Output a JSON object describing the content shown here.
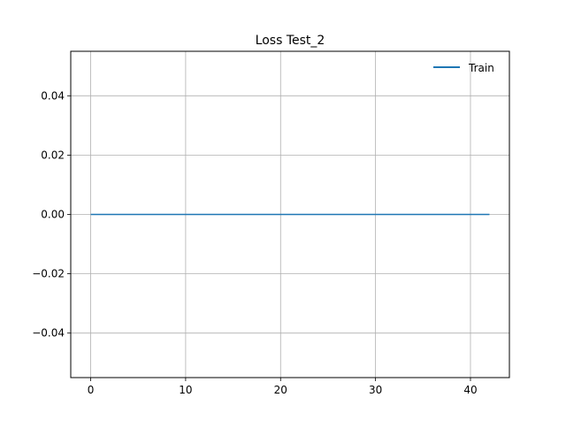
{
  "chart_data": {
    "type": "line",
    "title": "Loss Test_2",
    "xlabel": "",
    "ylabel": "",
    "xlim": [
      -2.1,
      44.1
    ],
    "ylim": [
      -0.055,
      0.055
    ],
    "xticks": [
      0,
      10,
      20,
      30,
      40
    ],
    "xtick_labels": [
      "0",
      "10",
      "20",
      "30",
      "40"
    ],
    "yticks": [
      -0.04,
      -0.02,
      0.0,
      0.02,
      0.04
    ],
    "ytick_labels": [
      "−0.04",
      "−0.02",
      "0.00",
      "0.02",
      "0.04"
    ],
    "grid": true,
    "legend": {
      "placement": "top-right",
      "entries": [
        "Train"
      ]
    },
    "series": [
      {
        "name": "Train",
        "color": "#1f77b4",
        "x": [
          0,
          1,
          2,
          3,
          4,
          5,
          6,
          7,
          8,
          9,
          10,
          11,
          12,
          13,
          14,
          15,
          16,
          17,
          18,
          19,
          20,
          21,
          22,
          23,
          24,
          25,
          26,
          27,
          28,
          29,
          30,
          31,
          32,
          33,
          34,
          35,
          36,
          37,
          38,
          39,
          40,
          41,
          42
        ],
        "y": [
          0,
          0,
          0,
          0,
          0,
          0,
          0,
          0,
          0,
          0,
          0,
          0,
          0,
          0,
          0,
          0,
          0,
          0,
          0,
          0,
          0,
          0,
          0,
          0,
          0,
          0,
          0,
          0,
          0,
          0,
          0,
          0,
          0,
          0,
          0,
          0,
          0,
          0,
          0,
          0,
          0,
          0,
          0
        ]
      }
    ]
  }
}
